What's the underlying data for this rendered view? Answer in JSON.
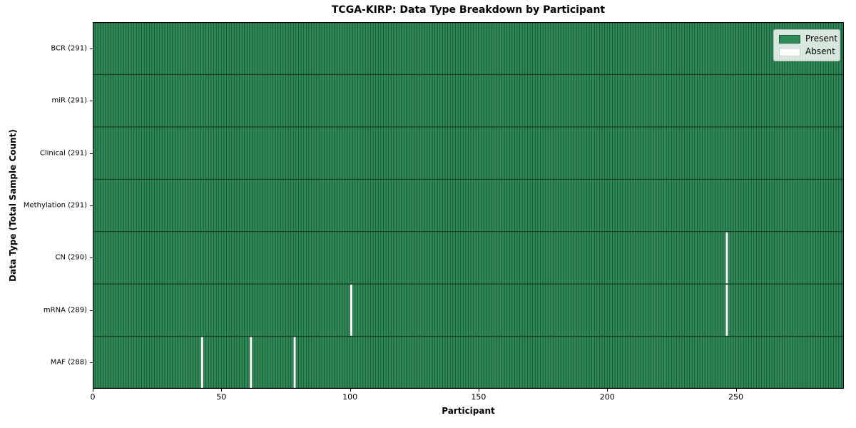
{
  "chart_data": {
    "type": "heatmap",
    "title": "TCGA-KIRP: Data Type Breakdown by Participant",
    "xlabel": "Participant",
    "ylabel": "Data Type (Total Sample Count)",
    "x_ticks": [
      0,
      50,
      100,
      150,
      200,
      250
    ],
    "xlim": [
      0,
      292
    ],
    "n_participants": 291,
    "categories": [
      "BCR (291)",
      "miR (291)",
      "Clinical (291)",
      "Methylation (291)",
      "CN (290)",
      "mRNA (289)",
      "MAF (288)"
    ],
    "series": [
      {
        "name": "BCR",
        "total": 291,
        "absent_participants": []
      },
      {
        "name": "miR",
        "total": 291,
        "absent_participants": []
      },
      {
        "name": "Clinical",
        "total": 291,
        "absent_participants": []
      },
      {
        "name": "Methylation",
        "total": 291,
        "absent_participants": []
      },
      {
        "name": "CN",
        "total": 290,
        "absent_participants": [
          246
        ]
      },
      {
        "name": "mRNA",
        "total": 289,
        "absent_participants": [
          100,
          246
        ]
      },
      {
        "name": "MAF",
        "total": 288,
        "absent_participants": [
          42,
          61,
          78
        ]
      }
    ],
    "legend": [
      {
        "label": "Present",
        "color": "#2e8b57"
      },
      {
        "label": "Absent",
        "color": "#ffffff"
      }
    ],
    "legend_position": "upper right",
    "grid": false,
    "colors": {
      "present": "#2e8b57",
      "absent": "#ffffff",
      "cell_edge": "#1d4f33",
      "row_divider": "#1b3a28",
      "spine": "#000000"
    }
  }
}
